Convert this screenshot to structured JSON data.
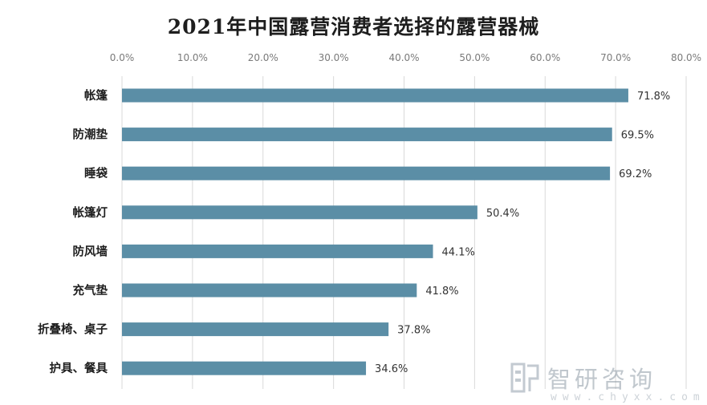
{
  "chart_data": {
    "type": "bar",
    "orientation": "horizontal",
    "title": "2021年中国露营消费者选择的露营器械",
    "categories": [
      "帐篷",
      "防潮垫",
      "睡袋",
      "帐篷灯",
      "防风墙",
      "充气垫",
      "折叠椅、桌子",
      "护具、餐具"
    ],
    "values": [
      71.8,
      69.5,
      69.2,
      50.4,
      44.1,
      41.8,
      37.8,
      34.6
    ],
    "value_labels": [
      "71.8%",
      "69.5%",
      "69.2%",
      "50.4%",
      "44.1%",
      "41.8%",
      "37.8%",
      "34.6%"
    ],
    "xlim": [
      0,
      80
    ],
    "xticks": [
      0,
      10,
      20,
      30,
      40,
      50,
      60,
      70,
      80
    ],
    "xtick_labels": [
      "0.0%",
      "10.0%",
      "20.0%",
      "30.0%",
      "40.0%",
      "50.0%",
      "60.0%",
      "70.0%",
      "80.0%"
    ],
    "x_axis_position": "top",
    "grid": true,
    "bar_color": "#5b8ea6"
  },
  "watermark": {
    "name": "智研咨询",
    "url": "www.chyxx.com"
  }
}
